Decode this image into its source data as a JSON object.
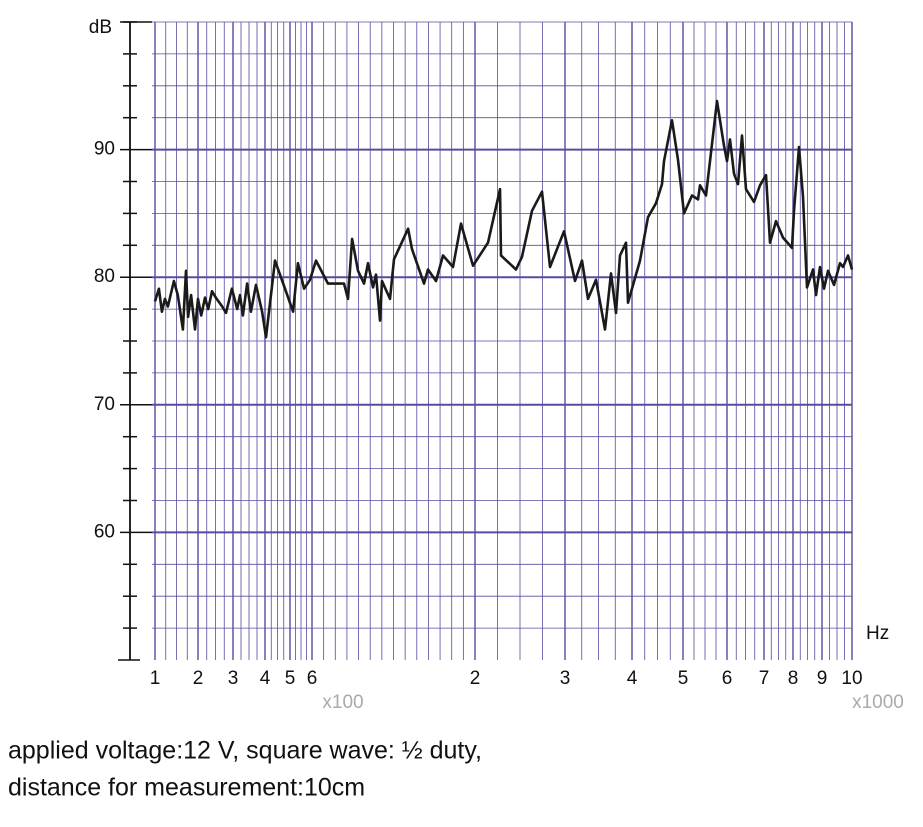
{
  "chart_data": {
    "type": "line",
    "y_label": "dB",
    "x_label": "Hz",
    "x_multipliers": [
      {
        "label": "x100"
      },
      {
        "label": "x1000"
      }
    ],
    "notes": [
      "applied voltage:12 V, square wave: ½ duty,",
      "distance for measurement:10cm"
    ],
    "ylim": [
      50,
      100
    ],
    "yticks": [
      60,
      70,
      80,
      90
    ],
    "yminorticks": [
      52.5,
      55,
      57.5,
      62.5,
      65,
      67.5,
      72.5,
      75,
      77.5,
      82.5,
      85,
      87.5,
      92.5,
      95,
      97.5,
      100
    ],
    "xlim": [
      100,
      10000
    ],
    "xticks": [
      {
        "value": 100,
        "label": "1"
      },
      {
        "value": 200,
        "label": "2"
      },
      {
        "value": 300,
        "label": "3"
      },
      {
        "value": 400,
        "label": "4"
      },
      {
        "value": 500,
        "label": "5"
      },
      {
        "value": 600,
        "label": "6"
      },
      {
        "value": 2000,
        "label": "2"
      },
      {
        "value": 3000,
        "label": "3"
      },
      {
        "value": 4000,
        "label": "4"
      },
      {
        "value": 5000,
        "label": "5"
      },
      {
        "value": 6000,
        "label": "6"
      },
      {
        "value": 7000,
        "label": "7"
      },
      {
        "value": 8000,
        "label": "8"
      },
      {
        "value": 9000,
        "label": "9"
      },
      {
        "value": 10000,
        "label": "10"
      }
    ],
    "xminorticks": [
      125,
      150,
      175,
      225,
      250,
      275,
      325,
      350,
      375,
      425,
      450,
      475,
      525,
      550,
      575,
      700,
      800,
      900,
      1000,
      1100,
      1200,
      1300,
      1400,
      1500,
      1600,
      1700,
      1800,
      1900,
      2250,
      2500,
      2750,
      3250,
      3500,
      3750,
      4250,
      4500,
      4750,
      5250,
      5500,
      5750,
      6250,
      6500,
      6750,
      7250,
      7500,
      7750,
      8250,
      8500,
      8750,
      9250,
      9500,
      9750
    ],
    "grid": true,
    "series": [
      {
        "color": "#1a1a1a",
        "x": [
          100,
          109,
          116,
          123,
          130,
          144,
          153,
          165,
          172,
          177,
          184,
          193,
          200,
          209,
          220,
          229,
          240,
          251,
          269,
          280,
          297,
          313,
          322,
          331,
          344,
          356,
          372,
          391,
          404,
          440,
          480,
          514,
          536,
          564,
          591,
          634,
          737,
          875,
          909,
          944,
          995,
          1047,
          1081,
          1124,
          1150,
          1184,
          1201,
          1270,
          1304,
          1425,
          1459,
          1562,
          1596,
          1665,
          1725,
          1811,
          1880,
          1983,
          2144,
          2278,
          2289,
          2456,
          2522,
          2633,
          2744,
          2833,
          2989,
          3149,
          3254,
          3343,
          3463,
          3597,
          3687,
          3761,
          3821,
          3910,
          3940,
          4157,
          4314,
          4471,
          4588,
          4627,
          4784,
          4902,
          5023,
          5205,
          5341,
          5386,
          5523,
          5773,
          5932,
          6000,
          6081,
          6189,
          6297,
          6405,
          6514,
          6730,
          6892,
          7069,
          7207,
          7414,
          7655,
          7966,
          8034,
          8207,
          8345,
          8483,
          8690,
          8793,
          8931,
          9067,
          9200,
          9400,
          9600,
          9700,
          9867,
          10000
        ],
        "values": [
          78.1,
          79.1,
          77.3,
          78.3,
          77.7,
          79.7,
          78.6,
          75.9,
          80.5,
          76.9,
          78.6,
          75.9,
          78.3,
          77.0,
          78.4,
          77.5,
          78.9,
          78.4,
          77.7,
          77.2,
          79.1,
          77.5,
          78.6,
          77.0,
          79.5,
          77.3,
          79.4,
          77.3,
          75.3,
          81.3,
          79.1,
          77.3,
          81.1,
          79.1,
          79.8,
          81.3,
          79.5,
          79.5,
          78.3,
          83.0,
          80.5,
          79.5,
          81.1,
          79.2,
          80.2,
          76.6,
          79.7,
          78.3,
          81.4,
          83.8,
          82.2,
          79.5,
          80.6,
          79.7,
          81.7,
          80.8,
          84.2,
          80.9,
          82.7,
          86.9,
          81.7,
          80.6,
          81.6,
          85.2,
          86.7,
          80.8,
          83.6,
          79.7,
          81.3,
          78.3,
          79.8,
          75.9,
          80.3,
          77.2,
          81.7,
          82.7,
          78.0,
          81.3,
          84.7,
          85.8,
          87.3,
          89.1,
          92.3,
          89.2,
          85.0,
          86.4,
          86.1,
          87.2,
          86.4,
          93.8,
          90.3,
          89.1,
          90.8,
          88.1,
          87.3,
          91.1,
          86.9,
          85.9,
          87.2,
          88.0,
          82.7,
          84.4,
          83.1,
          82.3,
          85.2,
          90.2,
          86.3,
          79.2,
          80.6,
          78.6,
          80.8,
          79.1,
          80.5,
          79.4,
          81.1,
          80.8,
          81.7,
          80.6
        ]
      }
    ]
  }
}
